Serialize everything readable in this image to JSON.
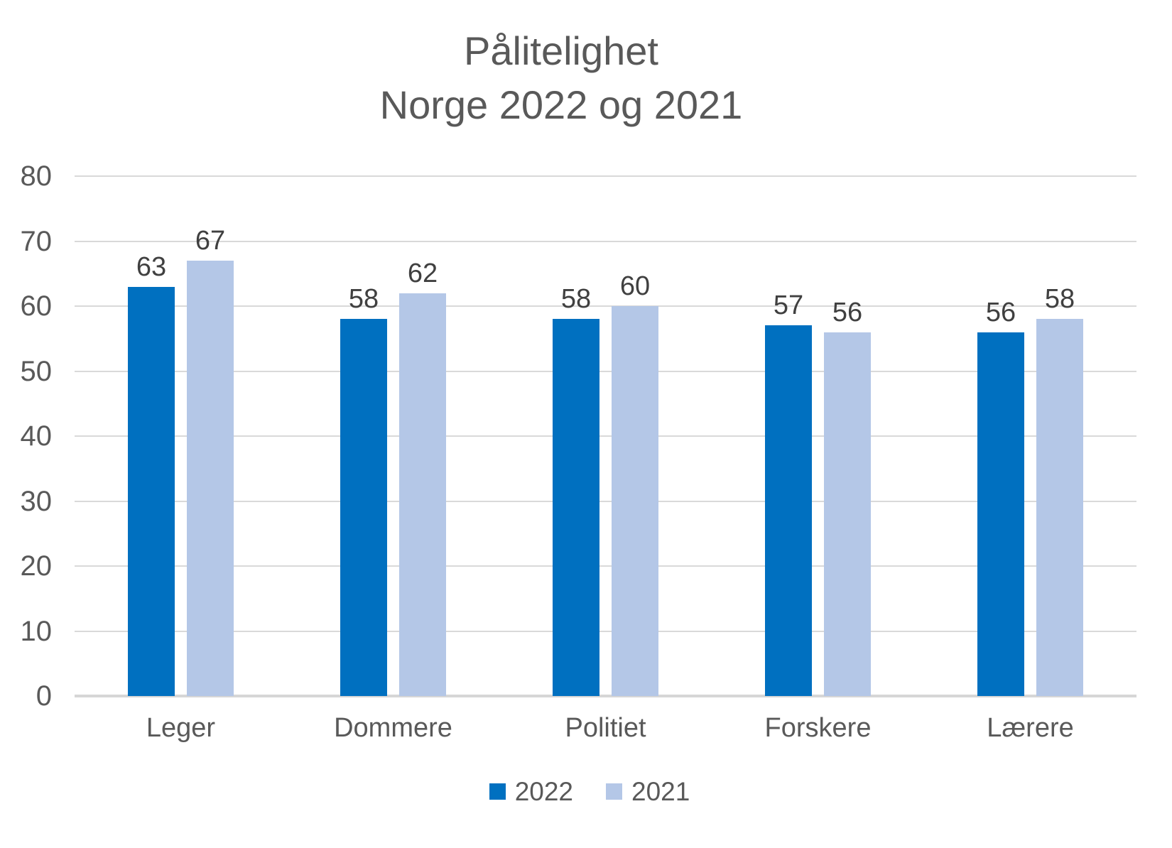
{
  "chart_data": {
    "type": "bar",
    "title": "Pålitelighet",
    "subtitle": "Norge 2022 og 2021",
    "categories": [
      "Leger",
      "Dommere",
      "Politiet",
      "Forskere",
      "Lærere"
    ],
    "series": [
      {
        "name": "2022",
        "color": "#0070C0",
        "values": [
          63,
          58,
          58,
          57,
          56
        ]
      },
      {
        "name": "2021",
        "color": "#B4C7E7",
        "values": [
          67,
          62,
          60,
          56,
          58
        ]
      }
    ],
    "ylim": [
      0,
      80
    ],
    "yticks": [
      0,
      10,
      20,
      30,
      40,
      50,
      60,
      70,
      80
    ],
    "grid": true,
    "legend_position": "bottom",
    "colors": {
      "gridline": "#D9D9D9",
      "axis_line": "#D6D6D6",
      "tick_label": "#595959",
      "category_label": "#595959",
      "data_label": "#404040",
      "title": "#595959",
      "background": "#FFFFFF"
    }
  }
}
